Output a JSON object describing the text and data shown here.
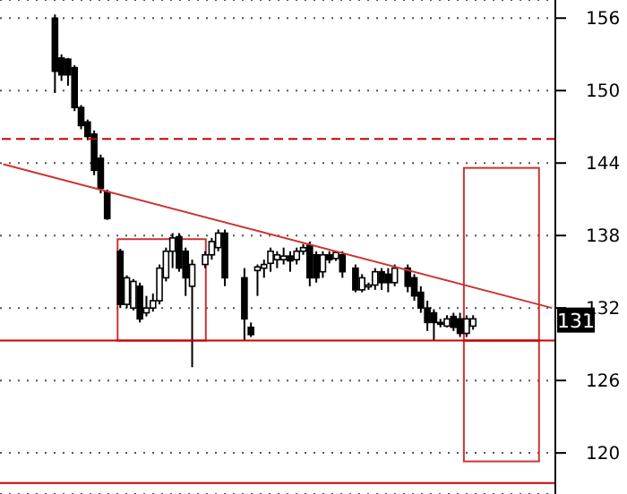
{
  "chart_data": {
    "type": "candlestick",
    "categories": [
      null,
      null,
      null,
      null,
      null,
      null,
      null,
      null,
      null,
      null,
      null,
      null,
      null,
      null,
      null,
      null,
      null,
      null,
      null,
      null,
      null,
      null,
      null,
      null,
      null,
      null,
      null,
      null,
      null,
      null,
      null,
      null,
      null,
      null,
      null,
      null,
      null,
      null,
      null,
      null,
      null,
      null,
      null,
      null,
      null,
      null,
      null,
      null,
      null,
      null,
      null,
      null,
      null,
      null,
      null,
      null,
      null,
      null,
      null,
      null,
      null,
      null,
      null,
      null,
      null,
      null,
      null,
      null,
      null,
      null,
      null,
      null,
      null,
      null,
      null,
      null,
      null,
      null,
      null,
      null,
      null,
      null,
      null,
      null,
      null
    ],
    "ohlc": [
      null,
      null,
      null,
      null,
      null,
      null,
      null,
      null,
      [
        156.0,
        156.3,
        149.8,
        151.6
      ],
      [
        152.7,
        153.0,
        150.8,
        151.3
      ],
      [
        152.6,
        152.7,
        150.4,
        151.3
      ],
      [
        151.9,
        152.1,
        148.3,
        148.6
      ],
      [
        148.6,
        148.8,
        146.8,
        147.1
      ],
      [
        147.4,
        147.6,
        145.9,
        146.2
      ],
      [
        146.4,
        146.7,
        143.0,
        143.4
      ],
      [
        144.4,
        144.7,
        141.5,
        141.9
      ],
      [
        141.6,
        141.8,
        139.3,
        139.4
      ],
      null,
      [
        136.7,
        136.9,
        132.0,
        132.3
      ],
      [
        132.3,
        134.7,
        132.0,
        134.5
      ],
      [
        132.0,
        134.4,
        131.8,
        134.2
      ],
      [
        133.8,
        134.1,
        130.8,
        131.1
      ],
      [
        131.6,
        133.0,
        131.3,
        132.0
      ],
      [
        132.0,
        133.2,
        131.7,
        132.6
      ],
      [
        132.6,
        135.6,
        132.3,
        135.3
      ],
      [
        134.5,
        137.0,
        134.2,
        136.7
      ],
      [
        136.7,
        138.2,
        135.3,
        137.8
      ],
      [
        137.9,
        138.2,
        135.0,
        135.3
      ],
      [
        136.7,
        137.0,
        133.0,
        134.5
      ],
      [
        133.8,
        136.0,
        127.1,
        135.6
      ],
      null,
      [
        135.6,
        136.7,
        135.3,
        136.4
      ],
      [
        136.4,
        137.8,
        136.0,
        137.5
      ],
      [
        137.0,
        138.5,
        136.7,
        138.2
      ],
      [
        138.2,
        138.5,
        133.8,
        134.5
      ],
      null,
      null,
      [
        134.5,
        135.3,
        129.3,
        131.1
      ],
      [
        130.4,
        130.8,
        129.6,
        129.8
      ],
      [
        135.1,
        135.6,
        133.0,
        135.4
      ],
      [
        135.3,
        136.0,
        134.5,
        135.6
      ],
      [
        135.7,
        137.0,
        135.0,
        136.7
      ],
      [
        136.0,
        136.7,
        135.3,
        136.4
      ],
      [
        136.0,
        137.0,
        135.6,
        136.3
      ],
      [
        136.3,
        136.7,
        135.0,
        135.9
      ],
      [
        136.0,
        137.0,
        135.6,
        136.7
      ],
      [
        136.7,
        137.3,
        136.4,
        137.0
      ],
      [
        137.2,
        137.5,
        133.8,
        134.5
      ],
      [
        136.4,
        136.7,
        134.1,
        134.5
      ],
      [
        135.0,
        136.7,
        134.5,
        136.4
      ],
      [
        136.4,
        136.7,
        135.7,
        136.0
      ],
      [
        136.1,
        136.7,
        135.9,
        136.6
      ],
      [
        136.4,
        136.7,
        134.5,
        135.0
      ],
      null,
      [
        135.3,
        135.6,
        133.3,
        133.5
      ],
      [
        133.5,
        134.8,
        133.3,
        134.5
      ],
      [
        133.8,
        134.1,
        133.5,
        133.9
      ],
      [
        133.9,
        135.3,
        133.5,
        135.0
      ],
      [
        135.0,
        135.3,
        133.5,
        134.1
      ],
      [
        134.8,
        135.3,
        133.3,
        134.1
      ],
      [
        134.1,
        135.6,
        133.8,
        135.3
      ],
      null,
      [
        135.3,
        135.6,
        133.3,
        133.8
      ],
      [
        134.5,
        134.8,
        132.6,
        133.0
      ],
      [
        133.3,
        133.8,
        131.6,
        132.0
      ],
      [
        132.0,
        132.6,
        130.1,
        130.8
      ],
      [
        131.6,
        131.9,
        129.3,
        130.8
      ],
      [
        130.8,
        131.1,
        130.4,
        130.7
      ],
      [
        130.5,
        131.4,
        130.4,
        131.1
      ],
      [
        131.3,
        131.6,
        130.1,
        130.4
      ],
      [
        131.1,
        131.6,
        129.6,
        129.9
      ],
      [
        129.9,
        131.4,
        129.6,
        131.1
      ],
      [
        130.5,
        131.4,
        130.2,
        131.1
      ],
      null,
      null,
      null,
      null,
      null,
      null,
      null,
      null,
      null,
      null,
      null,
      null
    ],
    "series": [
      {
        "type": "line",
        "color": "#cc3333",
        "values": [
          143.9,
          null,
          null,
          null,
          null,
          null,
          null,
          null,
          null,
          null,
          null,
          null,
          null,
          null,
          null,
          null,
          null,
          null,
          null,
          null,
          null,
          null,
          null,
          null,
          null,
          null,
          null,
          null,
          null,
          null,
          null,
          null,
          null,
          null,
          null,
          null,
          null,
          null,
          null,
          null,
          null,
          null,
          null,
          null,
          null,
          null,
          null,
          null,
          null,
          null,
          null,
          null,
          null,
          null,
          null,
          null,
          null,
          null,
          null,
          null,
          null,
          null,
          null,
          null,
          null,
          null,
          null,
          null,
          null,
          null,
          null,
          null,
          null,
          null,
          null,
          null,
          null,
          null,
          null,
          null,
          null,
          null,
          null,
          null,
          132.0
        ]
      }
    ],
    "ylim": [
      116.6,
      157.5
    ],
    "yticks": [
      120,
      126,
      132,
      138,
      144,
      150,
      156
    ],
    "grid": "y",
    "tick_labels": "y",
    "ref_lines": [
      {
        "axis": "y",
        "value": 146,
        "color": "#cc0000",
        "line_style": "dashed"
      },
      {
        "axis": "y",
        "value": 129.3,
        "color": "#cc0000",
        "line_style": "solid"
      },
      {
        "axis": "y",
        "value": 117.5,
        "color": "#cc0000",
        "line_style": "solid"
      }
    ],
    "annotations": [
      {
        "text": "131",
        "y": 131
      }
    ]
  }
}
